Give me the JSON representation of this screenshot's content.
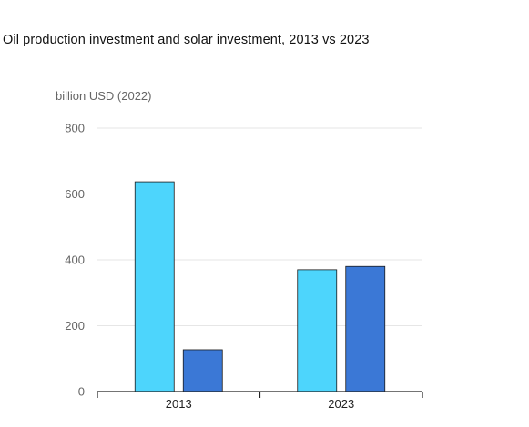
{
  "chart_data": {
    "type": "bar",
    "title": "Oil production investment and solar investment, 2013 vs 2023",
    "ylabel": "billion USD (2022)",
    "xlabel": "",
    "categories": [
      "2013",
      "2023"
    ],
    "series": [
      {
        "values": [
          637,
          370
        ],
        "color": "#4dd5fc"
      },
      {
        "values": [
          127,
          380
        ],
        "color": "#3b78d6"
      }
    ],
    "ylim": [
      0,
      800
    ],
    "yticks": [
      0,
      200,
      400,
      600,
      800
    ],
    "grid": true,
    "legend": "none"
  }
}
